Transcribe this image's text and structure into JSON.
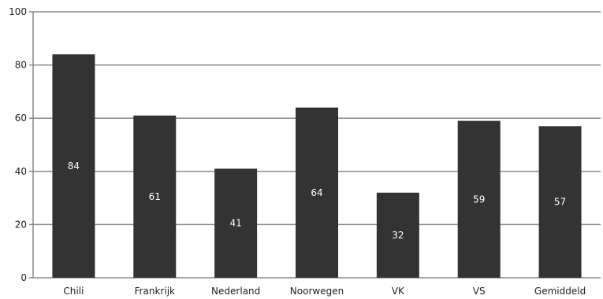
{
  "chart_data": {
    "type": "bar",
    "categories": [
      "Chili",
      "Frankrijk",
      "Nederland",
      "Noorwegen",
      "VK",
      "VS",
      "Gemiddeld"
    ],
    "values": [
      84,
      61,
      41,
      64,
      32,
      59,
      57
    ],
    "data_labels": [
      "84",
      "61",
      "41",
      "64",
      "32",
      "59",
      "57"
    ],
    "ylim": [
      0,
      100
    ],
    "yticks": [
      "0",
      "20",
      "40",
      "60",
      "80",
      "100"
    ],
    "grid": true,
    "bar_color": "#333333",
    "grid_color": "#888888",
    "label_color": "#ffffff"
  }
}
